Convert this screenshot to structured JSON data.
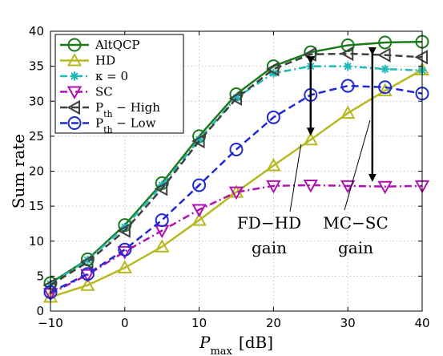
{
  "chart_data": {
    "type": "line",
    "title": "",
    "xlabel": "P_max [dB]",
    "xlabel_main": "P",
    "xlabel_sub": "max",
    "xlabel_unit": "[dB]",
    "ylabel": "Sum rate",
    "xlim": [
      -10,
      40
    ],
    "ylim": [
      0,
      40
    ],
    "x_ticks": [
      -10,
      0,
      10,
      20,
      30,
      40
    ],
    "x_tick_labels": [
      "−10",
      "0",
      "10",
      "20",
      "30",
      "40"
    ],
    "y_ticks": [
      0,
      5,
      10,
      15,
      20,
      25,
      30,
      35,
      40
    ],
    "y_tick_labels": [
      "0",
      "5",
      "10",
      "15",
      "20",
      "25",
      "30",
      "35",
      "40"
    ],
    "grid": true,
    "legend_position": "top-left",
    "x": [
      -10,
      -5,
      0,
      5,
      10,
      15,
      20,
      25,
      30,
      35,
      40
    ],
    "series": [
      {
        "name": "AltQCP",
        "legend_parts": [
          [
            "AltQCP",
            ""
          ]
        ],
        "color": "#1a7a1a",
        "dash": "solid",
        "marker": "circle",
        "values": [
          4.0,
          7.4,
          12.3,
          18.3,
          25.0,
          31.0,
          35.0,
          37.0,
          38.0,
          38.4,
          38.5
        ]
      },
      {
        "name": "HD",
        "legend_parts": [
          [
            "HD",
            ""
          ]
        ],
        "color": "#b8b820",
        "dash": "solid",
        "marker": "triangle-up",
        "values": [
          2.0,
          3.7,
          6.2,
          9.2,
          13.0,
          17.0,
          20.8,
          24.5,
          28.3,
          31.5,
          34.5
        ]
      },
      {
        "name": "κ = 0",
        "legend_parts": [
          [
            "κ = 0",
            ""
          ]
        ],
        "color": "#1fb8b8",
        "dash": "dashdot",
        "marker": "star",
        "values": [
          3.9,
          7.3,
          12.0,
          18.0,
          24.5,
          30.5,
          34.0,
          35.0,
          35.0,
          34.6,
          34.4
        ]
      },
      {
        "name": "SC",
        "legend_parts": [
          [
            "SC",
            ""
          ]
        ],
        "color": "#b010b0",
        "dash": "dashdot",
        "marker": "triangle-down",
        "values": [
          2.5,
          5.2,
          8.5,
          11.5,
          14.5,
          17.0,
          17.9,
          18.0,
          17.9,
          17.8,
          17.9
        ]
      },
      {
        "name": "P_th − High",
        "legend_parts": [
          [
            "P",
            ""
          ],
          [
            "th",
            "sub"
          ],
          [
            " − High",
            ""
          ]
        ],
        "color": "#404040",
        "dash": "dashed",
        "marker": "triangle-left",
        "values": [
          3.7,
          7.0,
          11.5,
          17.5,
          24.3,
          30.4,
          34.6,
          36.7,
          36.8,
          36.6,
          36.3
        ]
      },
      {
        "name": "P_th − Low",
        "legend_parts": [
          [
            "P",
            ""
          ],
          [
            "th",
            "sub"
          ],
          [
            " − Low",
            ""
          ]
        ],
        "color": "#1f2bd0",
        "dash": "dashed",
        "marker": "circle",
        "values": [
          2.7,
          5.3,
          8.8,
          13.0,
          18.0,
          23.1,
          27.7,
          30.9,
          32.2,
          32.0,
          31.1
        ]
      }
    ],
    "annotations": [
      {
        "text_lines": [
          "FD−HD",
          "gain"
        ],
        "arrow_x": 25,
        "arrow_y": [
          37.0,
          24.5
        ]
      },
      {
        "text_lines": [
          "MC−SC",
          "gain"
        ],
        "arrow_x": 33.3,
        "arrow_y": [
          38.3,
          17.9
        ]
      }
    ]
  }
}
